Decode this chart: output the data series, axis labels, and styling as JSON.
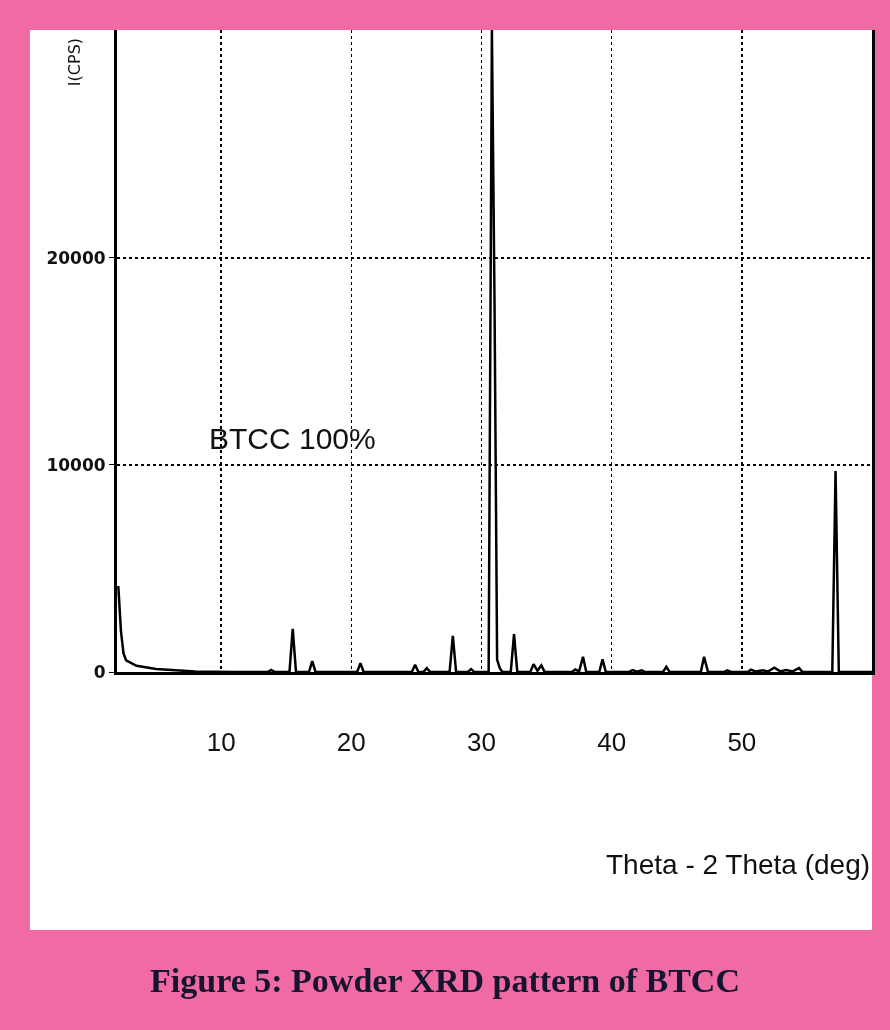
{
  "chart_data": {
    "type": "line",
    "title": "Figure 5: Powder XRD pattern of BTCC",
    "xlabel": "Theta - 2 Theta (deg)",
    "ylabel": "I(CPS)",
    "annotations": [
      "BTCC 100%"
    ],
    "x": [
      2.1,
      2.3,
      2.5,
      2.7,
      3.5,
      5,
      6.5,
      8,
      9.5,
      11,
      13.6,
      13.85,
      14.1,
      15.25,
      15.5,
      15.75,
      16.75,
      17.0,
      17.25,
      20.45,
      20.7,
      20.95,
      24.65,
      24.9,
      25.15,
      25.55,
      25.8,
      26.05,
      27.55,
      27.8,
      28.05,
      28.95,
      29.2,
      29.45,
      30.55,
      30.8,
      31.0,
      31.2,
      31.4,
      31.6,
      32.25,
      32.5,
      32.75,
      33.75,
      34.0,
      34.3,
      34.6,
      34.85,
      36.95,
      37.2,
      37.5,
      37.8,
      38.05,
      39.05,
      39.3,
      39.55,
      41.35,
      41.6,
      41.95,
      42.3,
      42.55,
      43.95,
      44.2,
      44.45,
      46.85,
      47.1,
      47.4,
      48.65,
      48.9,
      49.15,
      50.45,
      50.7,
      51.1,
      51.6,
      52.0,
      52.5,
      52.95,
      53.4,
      53.9,
      54.4,
      54.65,
      56.95,
      57.2,
      57.45,
      60
    ],
    "values": [
      4150,
      2000,
      900,
      560,
      300,
      150,
      80,
      30,
      10,
      4,
      4,
      95,
      4,
      4,
      2080,
      4,
      4,
      520,
      4,
      4,
      420,
      4,
      4,
      350,
      4,
      4,
      190,
      4,
      4,
      1740,
      4,
      4,
      140,
      4,
      4,
      31000,
      18000,
      600,
      190,
      4,
      4,
      1830,
      4,
      4,
      380,
      60,
      320,
      4,
      4,
      120,
      30,
      730,
      4,
      4,
      610,
      4,
      4,
      90,
      20,
      80,
      4,
      4,
      250,
      4,
      4,
      730,
      4,
      4,
      80,
      4,
      4,
      110,
      20,
      80,
      20,
      210,
      30,
      95,
      30,
      190,
      4,
      4,
      9700,
      4,
      4
    ],
    "color": "#000000",
    "marker": "none",
    "line_style": "solid",
    "xlim": [
      2,
      60
    ],
    "xticks": [
      10,
      20,
      30,
      40,
      50
    ],
    "ylim": [
      0,
      31000
    ],
    "yticks": [
      0,
      10000,
      20000
    ],
    "grid": true
  }
}
